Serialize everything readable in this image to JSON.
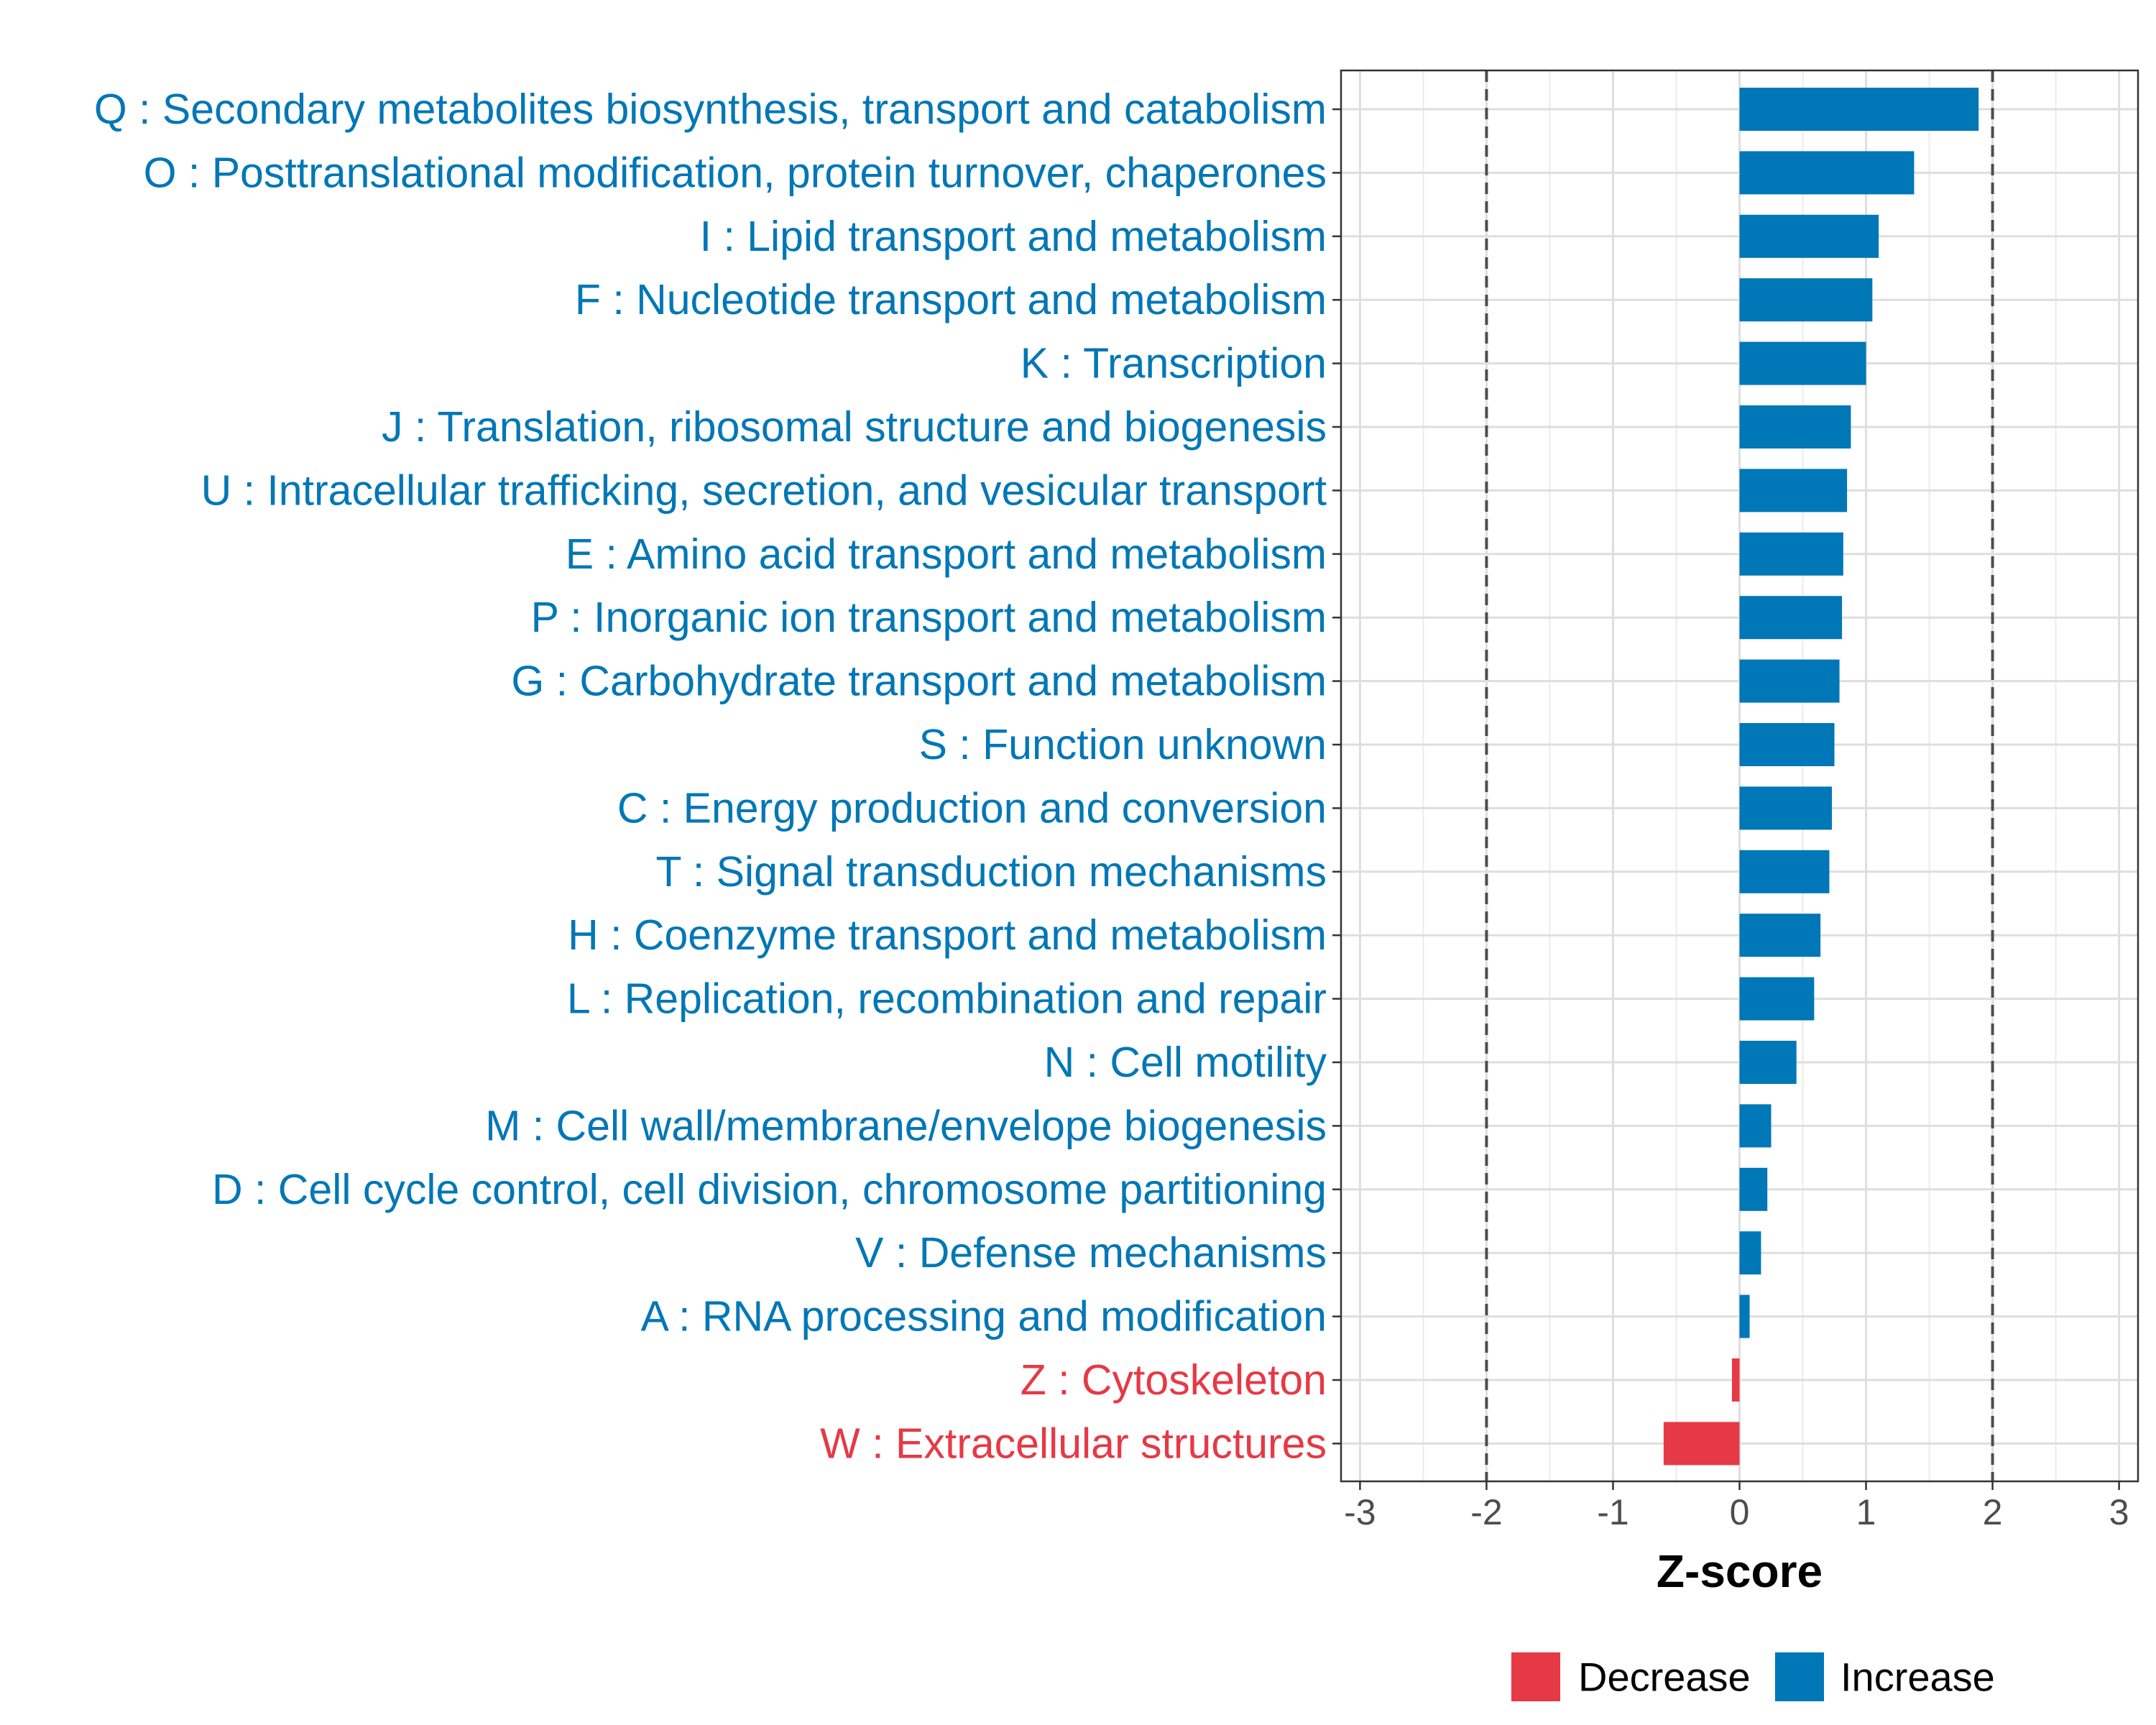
{
  "chart_data": {
    "type": "bar",
    "orientation": "horizontal",
    "title": "",
    "xlabel": "Z-score",
    "ylabel": "",
    "xlim": [
      -3.15,
      3.15
    ],
    "xticks": [
      "-3",
      "-2",
      "-1",
      "0",
      "1",
      "2",
      "3"
    ],
    "tick_values": [
      -3,
      -2,
      -1,
      0,
      1,
      2,
      3
    ],
    "reference_lines": [
      -2,
      2
    ],
    "grid": true,
    "legend_position": "bottom",
    "categories": [
      "Q : Secondary metabolites biosynthesis, transport and catabolism",
      "O : Posttranslational modification, protein turnover, chaperones",
      "I : Lipid transport and metabolism",
      "F : Nucleotide transport and metabolism",
      "K : Transcription",
      "J : Translation, ribosomal structure and biogenesis",
      "U : Intracellular trafficking, secretion, and vesicular transport",
      "E : Amino acid transport and metabolism",
      "P : Inorganic ion transport and metabolism",
      "G : Carbohydrate transport and metabolism",
      "S : Function unknown",
      "C : Energy production and conversion",
      "T : Signal transduction mechanisms",
      "H : Coenzyme transport and metabolism",
      "L : Replication, recombination and repair",
      "N : Cell motility",
      "M : Cell wall/membrane/envelope biogenesis",
      "D : Cell cycle control, cell division, chromosome partitioning",
      "V : Defense mechanisms",
      "A : RNA processing and modification",
      "Z : Cytoskeleton",
      "W : Extracellular structures"
    ],
    "values": [
      1.89,
      1.38,
      1.1,
      1.05,
      1.0,
      0.88,
      0.85,
      0.82,
      0.81,
      0.79,
      0.75,
      0.73,
      0.71,
      0.64,
      0.59,
      0.45,
      0.25,
      0.22,
      0.17,
      0.08,
      -0.06,
      -0.6
    ],
    "groups": [
      "Increase",
      "Increase",
      "Increase",
      "Increase",
      "Increase",
      "Increase",
      "Increase",
      "Increase",
      "Increase",
      "Increase",
      "Increase",
      "Increase",
      "Increase",
      "Increase",
      "Increase",
      "Increase",
      "Increase",
      "Increase",
      "Increase",
      "Increase",
      "Decrease",
      "Decrease"
    ],
    "legend": [
      {
        "name": "Decrease",
        "color": "#e63946"
      },
      {
        "name": "Increase",
        "color": "#0077b6"
      }
    ]
  }
}
